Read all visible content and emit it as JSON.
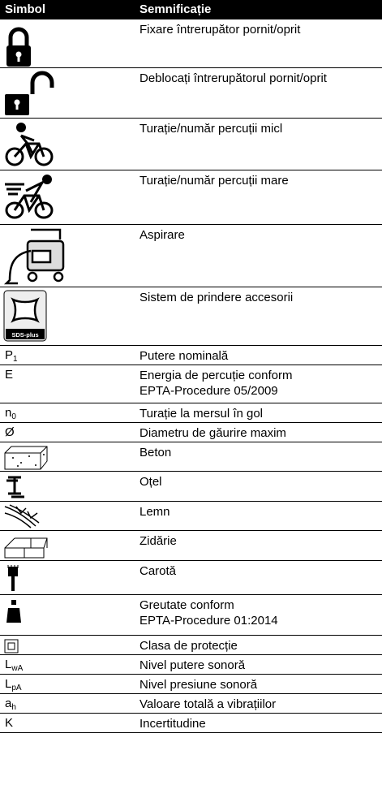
{
  "table": {
    "header": [
      "Simbol",
      "Semnificație"
    ],
    "rows": [
      {
        "meaning": "Fixare întrerupător pornit/oprit"
      },
      {
        "meaning": "Deblocați întrerupătorul pornit/oprit"
      },
      {
        "meaning": "Turație/număr percuții micl"
      },
      {
        "meaning": "Turație/număr percuții mare"
      },
      {
        "meaning": "Aspirare"
      },
      {
        "icon_label": "SDS-plus",
        "meaning": "Sistem de prindere accesorii"
      },
      {
        "symbol": {
          "base": "P",
          "sub": "1"
        },
        "meaning": "Putere nominală"
      },
      {
        "symbol": "E",
        "meaning": [
          "Energia de percuție conform",
          "EPTA-Procedure 05/2009"
        ]
      },
      {
        "symbol": {
          "base": "n",
          "sub": "0"
        },
        "meaning": "Turație la mersul în gol"
      },
      {
        "symbol": "Ø",
        "meaning": "Diametru de găurire maxim"
      },
      {
        "meaning": "Beton"
      },
      {
        "meaning": "Oțel"
      },
      {
        "meaning": "Lemn"
      },
      {
        "meaning": "Zidărie"
      },
      {
        "meaning": "Carotă"
      },
      {
        "meaning": [
          "Greutate conform",
          "EPTA-Procedure 01:2014"
        ]
      },
      {
        "meaning": "Clasa de protecție"
      },
      {
        "symbol": {
          "base": "L",
          "sub": "wA"
        },
        "meaning": "Nivel putere sonoră"
      },
      {
        "symbol": {
          "base": "L",
          "sub": "pA"
        },
        "meaning": "Nivel presiune sonoră"
      },
      {
        "symbol": {
          "base": "a",
          "sub": "h"
        },
        "meaning": "Valoare totală a vibrațiilor"
      },
      {
        "symbol": "K",
        "meaning": "Incertitudine"
      }
    ]
  }
}
